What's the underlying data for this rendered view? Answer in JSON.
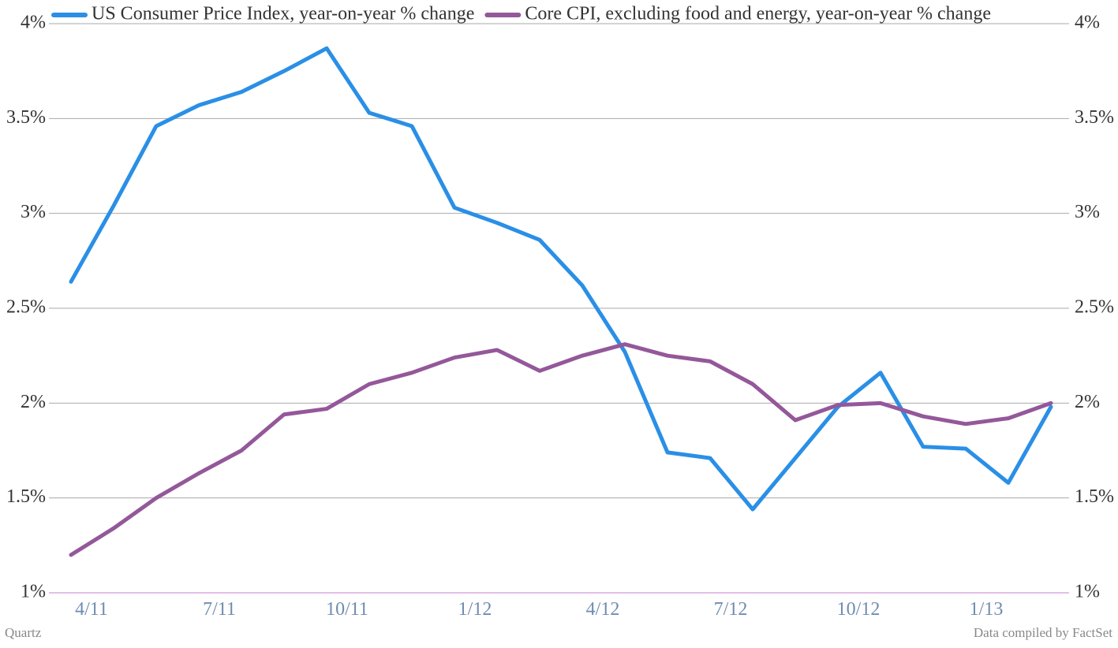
{
  "chart_data": {
    "type": "line",
    "categories": [
      "4/11",
      null,
      null,
      "7/11",
      null,
      null,
      "10/11",
      null,
      null,
      "1/12",
      null,
      null,
      "4/12",
      null,
      null,
      "7/12",
      null,
      null,
      "10/12",
      null,
      null,
      "1/13",
      null,
      null
    ],
    "series": [
      {
        "name": "US Consumer Price Index, year-on-year % change",
        "color": "#2a8fe6",
        "values": [
          2.64,
          3.04,
          3.46,
          3.57,
          3.64,
          3.75,
          3.87,
          3.53,
          3.46,
          3.03,
          2.95,
          2.86,
          2.62,
          2.27,
          1.74,
          1.71,
          1.44,
          1.71,
          1.98,
          2.16,
          1.77,
          1.76,
          1.58,
          1.98
        ]
      },
      {
        "name": "Core CPI, excluding food and energy, year-on-year % change",
        "color": "#94589a",
        "values": [
          1.2,
          1.34,
          1.5,
          1.63,
          1.75,
          1.94,
          1.97,
          2.1,
          2.16,
          2.24,
          2.28,
          2.17,
          2.25,
          2.31,
          2.25,
          2.22,
          2.1,
          1.91,
          1.99,
          2.0,
          1.93,
          1.89,
          1.92,
          2.0
        ]
      }
    ],
    "ylim": [
      1,
      4
    ],
    "yticks": [
      {
        "value": 1,
        "label": "1%"
      },
      {
        "value": 1.5,
        "label": "1.5%"
      },
      {
        "value": 2,
        "label": "2%"
      },
      {
        "value": 2.5,
        "label": "2.5%"
      },
      {
        "value": 3,
        "label": "3%"
      },
      {
        "value": 3.5,
        "label": "3.5%"
      },
      {
        "value": 4,
        "label": "4%"
      }
    ],
    "y2lim": [
      1,
      4
    ],
    "y2ticks": [
      {
        "value": 1,
        "label": "1%"
      },
      {
        "value": 1.5,
        "label": "1.5%"
      },
      {
        "value": 2,
        "label": "2%"
      },
      {
        "value": 2.5,
        "label": "2.5%"
      },
      {
        "value": 3,
        "label": "3%"
      },
      {
        "value": 3.5,
        "label": "3.5%"
      },
      {
        "value": 4,
        "label": "4%"
      }
    ],
    "grid": true,
    "legend": "top",
    "source_left": "Quartz",
    "source_right": "Data compiled by FactSet"
  }
}
